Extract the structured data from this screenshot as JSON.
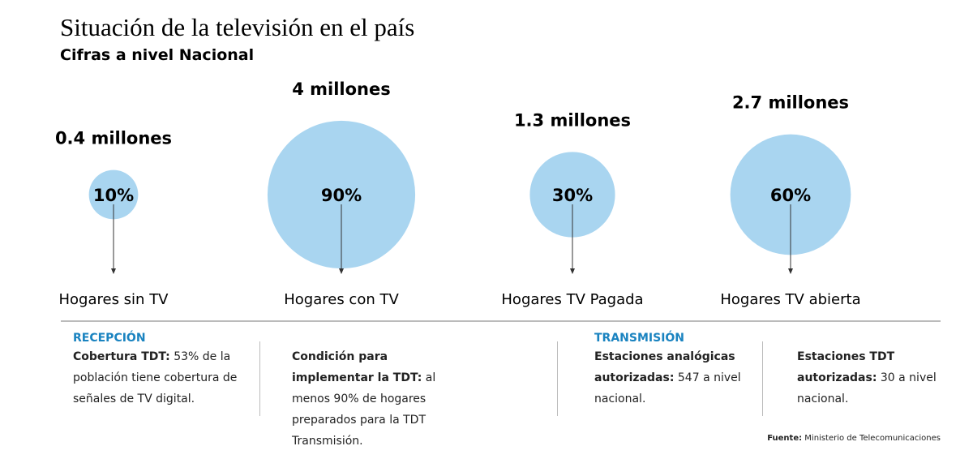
{
  "chart_data": {
    "type": "bubble",
    "title": "Situación de la televisión en el país",
    "subtitle": "Cifras a nivel Nacional",
    "categories": [
      "Hogares sin TV",
      "Hogares con TV",
      "Hogares TV Pagada",
      "Hogares TV abierta"
    ],
    "values": [
      10,
      90,
      30,
      60
    ],
    "value_labels": [
      "10%",
      "90%",
      "30%",
      "60%"
    ],
    "totals": [
      "0.4 millones",
      "4 millones",
      "1.3 millones",
      "2.7 millones"
    ],
    "color": "#a9d5f0"
  },
  "notes": [
    {
      "heading": "RECEPCIÓN",
      "items": [
        {
          "lead": "Cobertura TDT:",
          "text": "53% de la población tiene cobertura de señales de TV digital."
        },
        {
          "lead": "Condición para implementar la TDT:",
          "text": "al menos 90% de hogares preparados para la TDT Transmisión."
        }
      ]
    },
    {
      "heading": "TRANSMISIÓN",
      "items": [
        {
          "lead": "Estaciones analógicas autorizadas:",
          "text": "547 a nivel nacional."
        },
        {
          "lead": "Estaciones TDT autorizadas:",
          "text": "30 a nivel nacional."
        }
      ]
    }
  ],
  "source": {
    "lead": "Fuente:",
    "text": "Ministerio de Telecomunicaciones"
  }
}
